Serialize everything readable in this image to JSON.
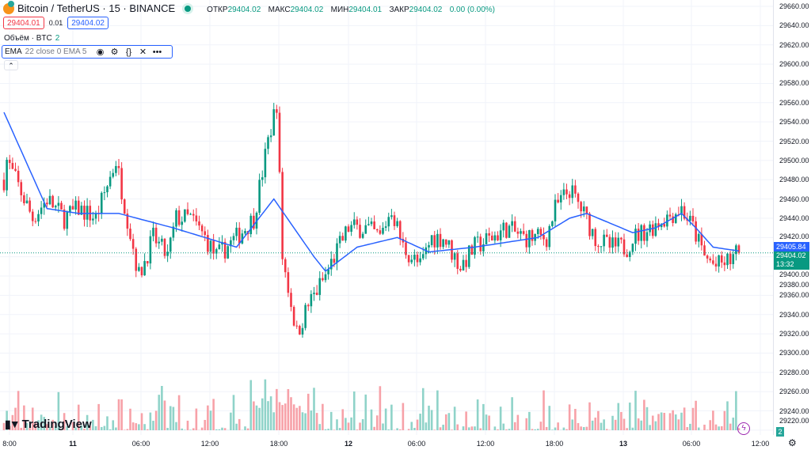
{
  "header": {
    "symbol": "Bitcoin / TetherUS · 15 · BINANCE",
    "ohlc": [
      {
        "label": "ОТКР",
        "value": "29404.02"
      },
      {
        "label": "МАКС",
        "value": "29404.02"
      },
      {
        "label": "МИН",
        "value": "29404.01"
      },
      {
        "label": "ЗАКР",
        "value": "29404.02"
      }
    ],
    "change": "0.00 (0.00%)"
  },
  "trade": {
    "sell": "29404.01",
    "spread": "0.01",
    "buy": "29404.02"
  },
  "volume": {
    "label": "Объём · BTC",
    "value": "2"
  },
  "indicator": {
    "label": "EMA",
    "params": "22 close 0 EMA 5"
  },
  "price_axis": {
    "labels": [
      "29660.00",
      "29640.00",
      "29620.00",
      "29600.00",
      "29580.00",
      "29560.00",
      "29540.00",
      "29520.00",
      "29500.00",
      "29480.00",
      "29460.00",
      "29440.00",
      "29420.00",
      "29400.00",
      "29380.00",
      "29360.00",
      "29340.00",
      "29320.00",
      "29300.00",
      "29280.00",
      "29260.00",
      "29240.00",
      "29220.00"
    ],
    "ema_tag": "29405.84",
    "last_price_tag": "29404.02",
    "countdown": "13:32",
    "volume_tag": "2"
  },
  "time_axis": [
    {
      "label": "8:00",
      "bold": false
    },
    {
      "label": "11",
      "bold": true
    },
    {
      "label": "06:00",
      "bold": false
    },
    {
      "label": "12:00",
      "bold": false
    },
    {
      "label": "18:00",
      "bold": false
    },
    {
      "label": "12",
      "bold": true
    },
    {
      "label": "06:00",
      "bold": false
    },
    {
      "label": "12:00",
      "bold": false
    },
    {
      "label": "18:00",
      "bold": false
    },
    {
      "label": "13",
      "bold": true
    },
    {
      "label": "06:00",
      "bold": false
    },
    {
      "label": "12:00",
      "bold": false
    }
  ],
  "branding": "TradingView",
  "colors": {
    "up": "#089981",
    "down": "#f23645",
    "ema": "#2962ff",
    "vol_up": "#8fd3c9",
    "vol_down": "#f7a1a8"
  },
  "price_path": [
    [
      0,
      29480
    ],
    [
      1,
      29500
    ],
    [
      4,
      29480
    ],
    [
      10,
      29440
    ],
    [
      15,
      29460
    ],
    [
      21,
      29440
    ],
    [
      26,
      29450
    ],
    [
      32,
      29440
    ],
    [
      39,
      29500
    ],
    [
      43,
      29440
    ],
    [
      47,
      29380
    ],
    [
      52,
      29420
    ],
    [
      57,
      29400
    ],
    [
      60,
      29440
    ],
    [
      65,
      29440
    ],
    [
      70,
      29420
    ],
    [
      74,
      29400
    ],
    [
      81,
      29420
    ],
    [
      87,
      29440
    ],
    [
      92,
      29520
    ],
    [
      95,
      29560
    ],
    [
      97,
      29400
    ],
    [
      102,
      29320
    ],
    [
      106,
      29350
    ],
    [
      112,
      29380
    ],
    [
      115,
      29400
    ],
    [
      120,
      29430
    ],
    [
      126,
      29430
    ],
    [
      131,
      29420
    ],
    [
      135,
      29450
    ],
    [
      139,
      29410
    ],
    [
      145,
      29390
    ],
    [
      149,
      29420
    ],
    [
      153,
      29420
    ],
    [
      159,
      29390
    ],
    [
      164,
      29410
    ],
    [
      170,
      29420
    ],
    [
      175,
      29430
    ],
    [
      181,
      29420
    ],
    [
      189,
      29420
    ],
    [
      192,
      29450
    ],
    [
      197,
      29470
    ],
    [
      201,
      29450
    ],
    [
      206,
      29420
    ],
    [
      211,
      29410
    ],
    [
      217,
      29410
    ],
    [
      219,
      29420
    ],
    [
      225,
      29430
    ],
    [
      230,
      29440
    ],
    [
      236,
      29450
    ],
    [
      240,
      29430
    ],
    [
      244,
      29400
    ],
    [
      248,
      29390
    ],
    [
      252,
      29395
    ],
    [
      256,
      29404
    ]
  ],
  "ema_path": [
    [
      0,
      29550
    ],
    [
      15,
      29450
    ],
    [
      26,
      29445
    ],
    [
      40,
      29445
    ],
    [
      59,
      29430
    ],
    [
      81,
      29410
    ],
    [
      94,
      29460
    ],
    [
      108,
      29400
    ],
    [
      112,
      29385
    ],
    [
      123,
      29410
    ],
    [
      137,
      29420
    ],
    [
      148,
      29405
    ],
    [
      164,
      29410
    ],
    [
      186,
      29420
    ],
    [
      197,
      29440
    ],
    [
      203,
      29445
    ],
    [
      219,
      29425
    ],
    [
      227,
      29430
    ],
    [
      236,
      29445
    ],
    [
      241,
      29430
    ],
    [
      247,
      29410
    ],
    [
      256,
      29406
    ]
  ]
}
